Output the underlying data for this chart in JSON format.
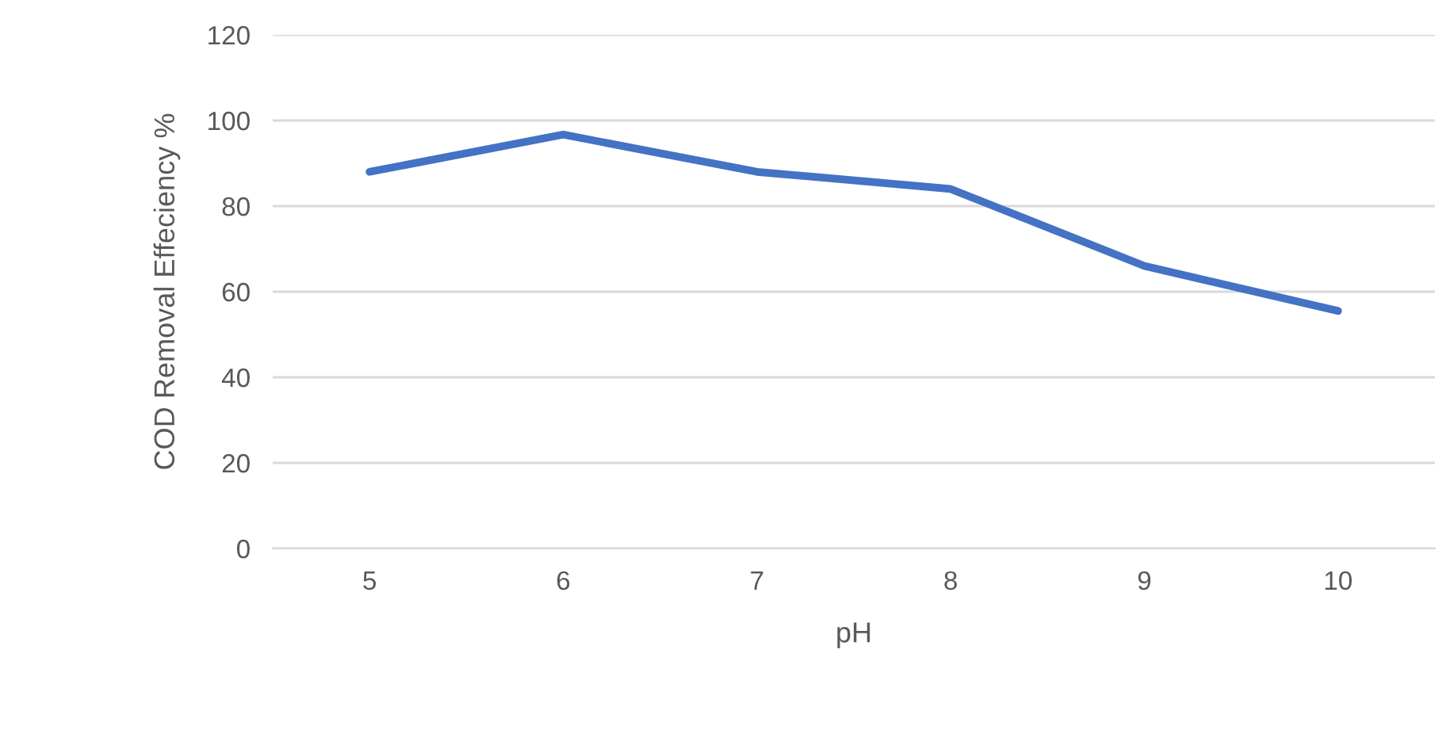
{
  "chart_data": {
    "type": "line",
    "xlabel": "pH",
    "ylabel": "COD Removal Effeciency %",
    "categories": [
      "5",
      "6",
      "7",
      "8",
      "9",
      "10"
    ],
    "series": [
      {
        "color": "#4472c4",
        "values": [
          88,
          96.7,
          88,
          84,
          66,
          55.5
        ]
      }
    ],
    "ylim": [
      0,
      120
    ],
    "yticks": [
      0,
      20,
      40,
      60,
      80,
      100,
      120
    ],
    "grid": "y",
    "legend": false,
    "marker": "none",
    "line_style": "solid"
  }
}
